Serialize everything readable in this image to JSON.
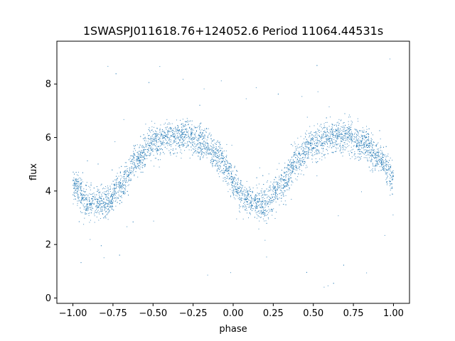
{
  "chart_data": {
    "type": "scatter",
    "title": "1SWASPJ011618.76+124052.6 Period 11064.44531s",
    "xlabel": "phase",
    "ylabel": "flux",
    "xlim": [
      -1.1,
      1.1
    ],
    "ylim": [
      -0.2,
      9.6
    ],
    "x_ticks": [
      -1.0,
      -0.75,
      -0.5,
      -0.25,
      0.0,
      0.25,
      0.5,
      0.75,
      1.0
    ],
    "x_tick_labels": [
      "−1.00",
      "−0.75",
      "−0.50",
      "−0.25",
      "0.00",
      "0.25",
      "0.50",
      "0.75",
      "1.00"
    ],
    "y_ticks": [
      0,
      2,
      4,
      6,
      8
    ],
    "y_tick_labels": [
      "0",
      "2",
      "4",
      "6",
      "8"
    ],
    "grid": false,
    "series": [
      {
        "color": "#1f77b4",
        "profile": {
          "phase": [
            0.0,
            0.1,
            0.2,
            0.3,
            0.4,
            0.5,
            0.6,
            0.7,
            0.8,
            0.9,
            1.0
          ],
          "flux": [
            4.2,
            3.6,
            3.5,
            4.2,
            5.2,
            5.8,
            6.0,
            6.05,
            5.8,
            5.3,
            4.5
          ]
        },
        "scatter_sigma": 0.3
      }
    ]
  }
}
